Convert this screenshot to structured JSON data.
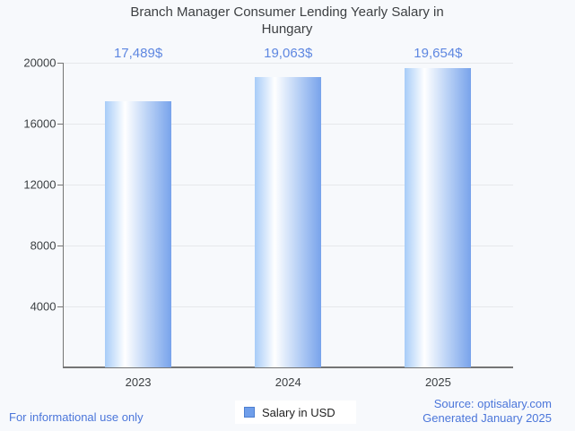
{
  "title": "Branch Manager Consumer Lending Yearly Salary in Hungary",
  "chart_data": {
    "type": "bar",
    "title": "Branch Manager Consumer Lending Yearly Salary in Hungary",
    "categories": [
      "2023",
      "2024",
      "2025"
    ],
    "values": [
      17489,
      19063,
      19654
    ],
    "value_labels": [
      "17,489$",
      "19,063$",
      "19,654$"
    ],
    "series": [
      {
        "name": "Salary in USD",
        "values": [
          17489,
          19063,
          19654
        ]
      }
    ],
    "xlabel": "",
    "ylabel": "",
    "ylim": [
      0,
      20000
    ],
    "yticks": [
      4000,
      8000,
      12000,
      16000,
      20000
    ],
    "ytick_labels": [
      "4000",
      "8000",
      "12000",
      "16000",
      "20000"
    ],
    "grid": true,
    "legend_position": "bottom",
    "bar_gradient": [
      {
        "color": "#a7ccf8",
        "pos": 0
      },
      {
        "color": "#ffffff",
        "pos": 30
      },
      {
        "color": "#c3d8f7",
        "pos": 60
      },
      {
        "color": "#78a3eb",
        "pos": 100
      }
    ]
  },
  "legend": {
    "label": "Salary in USD",
    "swatch_color": "#6f9eea",
    "swatch_border_color": "#4d7fd0"
  },
  "footer": {
    "left": "For informational use only",
    "source": "Source: optisalary.com",
    "generated": "Generated January 2025"
  },
  "colors": {
    "background": "#f7f9fc",
    "title_text": "#3d4043",
    "axis_text": "#3c4043",
    "value_label_text": "#5e87e1",
    "footer_text": "#4b76da",
    "gridline": "#e6e8eb",
    "axis_line": "#757575",
    "legend_text": "#1f1f1f"
  }
}
